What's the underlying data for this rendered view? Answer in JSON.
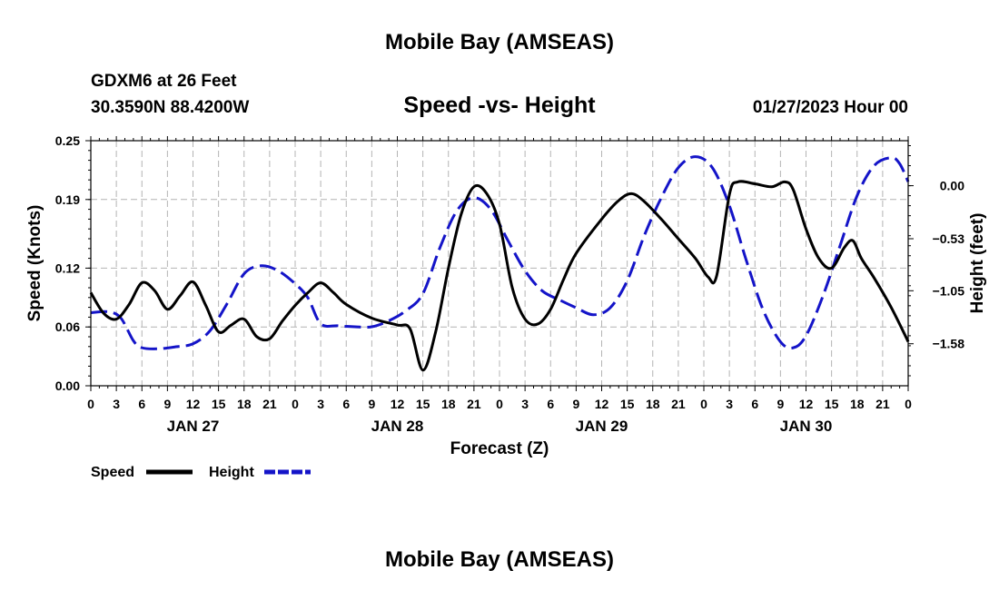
{
  "page_title": "Mobile Bay (AMSEAS)",
  "footer_title": "Mobile Bay (AMSEAS)",
  "station": {
    "line1": "GDXM6 at 26 Feet",
    "line2": "30.3590N  88.4200W"
  },
  "run_time": "01/27/2023 Hour 00",
  "colors": {
    "speed": "#000000",
    "height": "#1414c8",
    "grid": "#b4b4b4"
  },
  "chart_data": {
    "type": "line",
    "title": "Speed -vs- Height",
    "xlabel": "Forecast (Z)",
    "ylabel": "Speed (Knots)",
    "y2label": "Height (feet)",
    "x_unit": "hours since 2023-01-27 00Z",
    "xlim": [
      0,
      96
    ],
    "ylim": [
      0,
      0.25
    ],
    "y2lim": [
      -2.0,
      0.45
    ],
    "x_ticks": [
      0,
      3,
      6,
      9,
      12,
      15,
      18,
      21,
      24,
      27,
      30,
      33,
      36,
      39,
      42,
      45,
      48,
      51,
      54,
      57,
      60,
      63,
      66,
      69,
      72,
      75,
      78,
      81,
      84,
      87,
      90,
      93,
      96
    ],
    "x_tick_labels": [
      "0",
      "3",
      "6",
      "9",
      "12",
      "15",
      "18",
      "21",
      "0",
      "3",
      "6",
      "9",
      "12",
      "15",
      "18",
      "21",
      "0",
      "3",
      "6",
      "9",
      "12",
      "15",
      "18",
      "21",
      "0",
      "3",
      "6",
      "9",
      "12",
      "15",
      "18",
      "21",
      "0"
    ],
    "day_labels": [
      {
        "x": 12,
        "label": "JAN 27"
      },
      {
        "x": 36,
        "label": "JAN 28"
      },
      {
        "x": 60,
        "label": "JAN 29"
      },
      {
        "x": 84,
        "label": "JAN 30"
      }
    ],
    "y_ticks": [
      0.0,
      0.06,
      0.12,
      0.19,
      0.25
    ],
    "y_tick_labels": [
      "0.00",
      "0.06",
      "0.12",
      "0.19",
      "0.25"
    ],
    "y2_ticks": [
      0.0,
      -0.53,
      -1.05,
      -1.58
    ],
    "y2_tick_labels": [
      "0.00",
      "−0.53",
      "−1.05",
      "−1.58"
    ],
    "grid": true,
    "legend": {
      "position": "bottom-left"
    },
    "series": [
      {
        "name": "Speed",
        "axis": "left",
        "style": "solid",
        "points": [
          [
            0,
            0.095
          ],
          [
            1.5,
            0.074
          ],
          [
            3,
            0.068
          ],
          [
            4.5,
            0.083
          ],
          [
            6,
            0.105
          ],
          [
            7.5,
            0.097
          ],
          [
            9,
            0.078
          ],
          [
            10.5,
            0.092
          ],
          [
            12,
            0.106
          ],
          [
            13.5,
            0.082
          ],
          [
            15,
            0.055
          ],
          [
            16.5,
            0.062
          ],
          [
            18,
            0.068
          ],
          [
            19.5,
            0.05
          ],
          [
            21,
            0.048
          ],
          [
            22.5,
            0.066
          ],
          [
            24,
            0.082
          ],
          [
            25.5,
            0.095
          ],
          [
            27,
            0.105
          ],
          [
            28.5,
            0.095
          ],
          [
            30,
            0.083
          ],
          [
            33,
            0.069
          ],
          [
            36,
            0.062
          ],
          [
            37.5,
            0.058
          ],
          [
            39,
            0.016
          ],
          [
            40.5,
            0.055
          ],
          [
            42,
            0.12
          ],
          [
            43.5,
            0.175
          ],
          [
            45,
            0.203
          ],
          [
            46.5,
            0.196
          ],
          [
            48,
            0.165
          ],
          [
            49.5,
            0.1
          ],
          [
            51,
            0.068
          ],
          [
            52.5,
            0.063
          ],
          [
            54,
            0.078
          ],
          [
            55.5,
            0.108
          ],
          [
            57,
            0.135
          ],
          [
            60,
            0.17
          ],
          [
            62,
            0.189
          ],
          [
            63.5,
            0.196
          ],
          [
            65,
            0.188
          ],
          [
            67,
            0.17
          ],
          [
            69,
            0.15
          ],
          [
            71,
            0.13
          ],
          [
            72.5,
            0.111
          ],
          [
            73.5,
            0.112
          ],
          [
            75,
            0.195
          ],
          [
            76,
            0.208
          ],
          [
            78,
            0.206
          ],
          [
            80,
            0.203
          ],
          [
            81.5,
            0.208
          ],
          [
            82.5,
            0.2
          ],
          [
            84,
            0.16
          ],
          [
            85.5,
            0.13
          ],
          [
            87,
            0.12
          ],
          [
            88.5,
            0.141
          ],
          [
            89.5,
            0.148
          ],
          [
            90.5,
            0.13
          ],
          [
            92,
            0.11
          ],
          [
            94,
            0.08
          ],
          [
            96,
            0.045
          ]
        ]
      },
      {
        "name": "Height",
        "axis": "right",
        "style": "dashed",
        "points": [
          [
            0,
            -1.27
          ],
          [
            2,
            -1.26
          ],
          [
            3.5,
            -1.32
          ],
          [
            5,
            -1.55
          ],
          [
            6,
            -1.62
          ],
          [
            8,
            -1.63
          ],
          [
            10,
            -1.61
          ],
          [
            12,
            -1.58
          ],
          [
            14,
            -1.45
          ],
          [
            16,
            -1.18
          ],
          [
            18,
            -0.88
          ],
          [
            20,
            -0.8
          ],
          [
            22,
            -0.85
          ],
          [
            24,
            -0.98
          ],
          [
            25.5,
            -1.12
          ],
          [
            27,
            -1.38
          ],
          [
            29,
            -1.4
          ],
          [
            31,
            -1.41
          ],
          [
            33,
            -1.41
          ],
          [
            35,
            -1.35
          ],
          [
            37,
            -1.25
          ],
          [
            39,
            -1.08
          ],
          [
            41,
            -0.62
          ],
          [
            43,
            -0.25
          ],
          [
            45,
            -0.12
          ],
          [
            47,
            -0.24
          ],
          [
            49,
            -0.55
          ],
          [
            51,
            -0.85
          ],
          [
            53,
            -1.05
          ],
          [
            55,
            -1.14
          ],
          [
            57,
            -1.22
          ],
          [
            59,
            -1.29
          ],
          [
            61,
            -1.22
          ],
          [
            63,
            -0.95
          ],
          [
            65,
            -0.5
          ],
          [
            67,
            -0.12
          ],
          [
            69,
            0.18
          ],
          [
            71,
            0.29
          ],
          [
            73,
            0.18
          ],
          [
            75,
            -0.2
          ],
          [
            77,
            -0.75
          ],
          [
            79,
            -1.25
          ],
          [
            81,
            -1.56
          ],
          [
            82.5,
            -1.62
          ],
          [
            84,
            -1.5
          ],
          [
            86,
            -1.1
          ],
          [
            88,
            -0.6
          ],
          [
            90,
            -0.1
          ],
          [
            92,
            0.2
          ],
          [
            94,
            0.28
          ],
          [
            95,
            0.22
          ],
          [
            96,
            0.04
          ]
        ]
      }
    ]
  }
}
